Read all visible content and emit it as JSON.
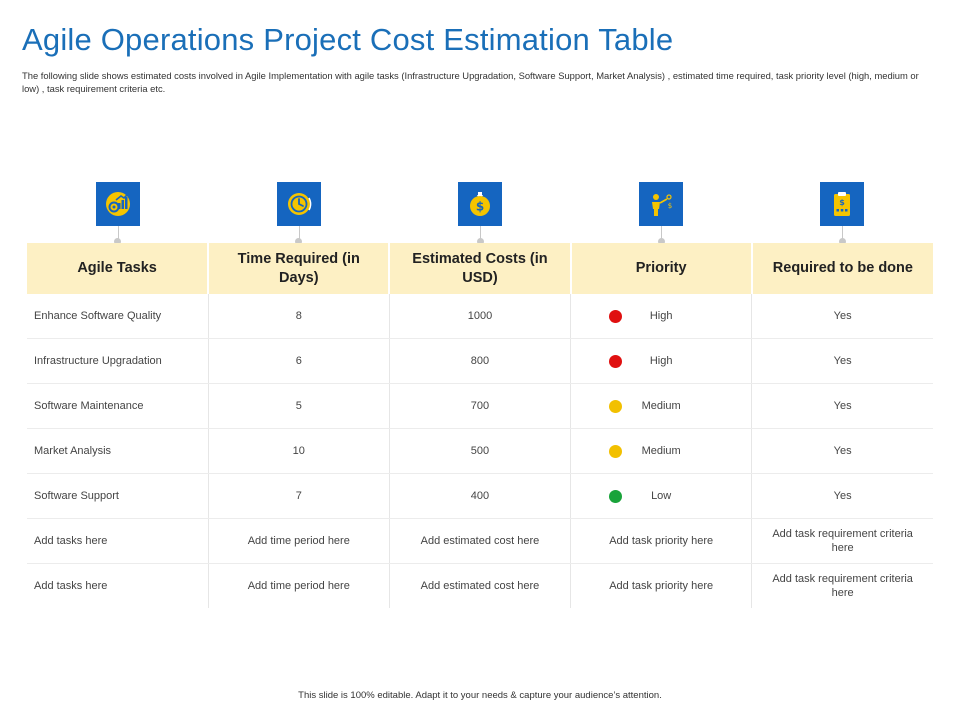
{
  "slide": {
    "title": "Agile Operations Project Cost Estimation Table",
    "subtitle": "The following slide shows estimated costs involved in Agile Implementation with agile tasks (Infrastructure Upgradation, Software Support, Market Analysis) , estimated time required, task priority level (high, medium or low) , task requirement criteria etc.",
    "footer": "This slide is 100% editable. Adapt it to your needs & capture your audience’s attention."
  },
  "icons": [
    "tasks-gear-chart-icon",
    "clock-icon",
    "money-bag-icon",
    "presenter-icon",
    "clipboard-dollar-icon"
  ],
  "colors": {
    "title": "#1a6fb8",
    "icon_bg": "#1565c0",
    "icon_accent": "#f5c400",
    "header_bg": "#fdf0c4",
    "priority_high": "#e01010",
    "priority_medium": "#f2c000",
    "priority_low": "#19a33a"
  },
  "table": {
    "headers": [
      "Agile Tasks",
      "Time Required (in Days)",
      "Estimated Costs (in USD)",
      "Priority",
      "Required to be done"
    ],
    "rows": [
      {
        "task": "Enhance Software Quality",
        "time": "8",
        "cost": "1000",
        "priority": "High",
        "priority_level": "high",
        "required": "Yes"
      },
      {
        "task": "Infrastructure Upgradation",
        "time": "6",
        "cost": "800",
        "priority": "High",
        "priority_level": "high",
        "required": "Yes"
      },
      {
        "task": "Software Maintenance",
        "time": "5",
        "cost": "700",
        "priority": "Medium",
        "priority_level": "medium",
        "required": "Yes"
      },
      {
        "task": "Market Analysis",
        "time": "10",
        "cost": "500",
        "priority": "Medium",
        "priority_level": "medium",
        "required": "Yes"
      },
      {
        "task": "Software Support",
        "time": "7",
        "cost": "400",
        "priority": "Low",
        "priority_level": "low",
        "required": "Yes"
      },
      {
        "task": "Add tasks here",
        "time": "Add time period here",
        "cost": "Add estimated cost here",
        "priority": "Add task priority here",
        "priority_level": "",
        "required": "Add task requirement criteria here"
      },
      {
        "task": "Add tasks here",
        "time": "Add time period here",
        "cost": "Add estimated cost here",
        "priority": "Add task priority here",
        "priority_level": "",
        "required": "Add task requirement criteria here"
      }
    ]
  }
}
